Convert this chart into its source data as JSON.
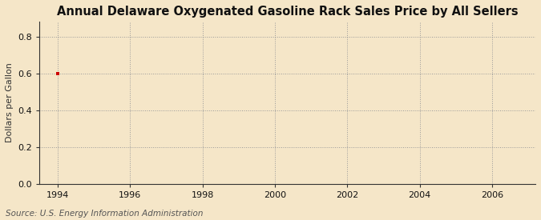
{
  "title": "Annual Delaware Oxygenated Gasoline Rack Sales Price by All Sellers",
  "ylabel": "Dollars per Gallon",
  "source": "Source: U.S. Energy Information Administration",
  "xlim": [
    1993.5,
    2007.2
  ],
  "ylim": [
    0.0,
    0.88
  ],
  "xticks": [
    1994,
    1996,
    1998,
    2000,
    2002,
    2004,
    2006
  ],
  "yticks": [
    0.0,
    0.2,
    0.4,
    0.6,
    0.8
  ],
  "data_x": [
    1994
  ],
  "data_y": [
    0.6
  ],
  "data_color": "#cc0000",
  "background_color": "#f5e6c8",
  "plot_bg_color": "#f5e6c8",
  "grid_color": "#999999",
  "title_fontsize": 10.5,
  "label_fontsize": 8,
  "tick_fontsize": 8,
  "source_fontsize": 7.5
}
